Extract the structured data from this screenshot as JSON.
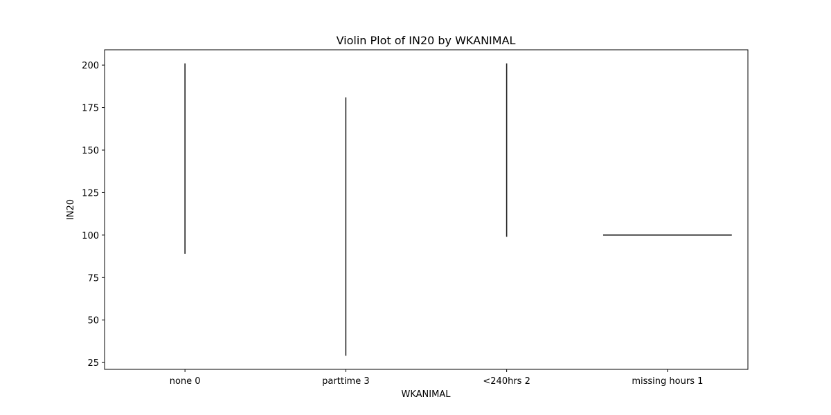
{
  "chart_data": {
    "type": "violin",
    "title": "Violin Plot of IN20 by WKANIMAL",
    "xlabel": "WKANIMAL",
    "ylabel": "IN20",
    "categories": [
      "none 0",
      "parttime 3",
      "<240hrs 2",
      "missing hours 1"
    ],
    "ylim": [
      21,
      209
    ],
    "yticks": [
      25,
      50,
      75,
      100,
      125,
      150,
      175,
      200
    ],
    "violins": [
      {
        "category": "none 0",
        "min": 89,
        "max": 201,
        "shape": "vertical-line"
      },
      {
        "category": "parttime 3",
        "min": 29,
        "max": 181,
        "shape": "vertical-line"
      },
      {
        "category": "<240hrs 2",
        "min": 99,
        "max": 201,
        "shape": "vertical-line"
      },
      {
        "category": "missing hours 1",
        "value": 100,
        "shape": "horizontal-line"
      }
    ],
    "grid": false,
    "legend": "none",
    "colors": {
      "line": "#222222",
      "axes": "#000000",
      "background": "#ffffff"
    }
  }
}
